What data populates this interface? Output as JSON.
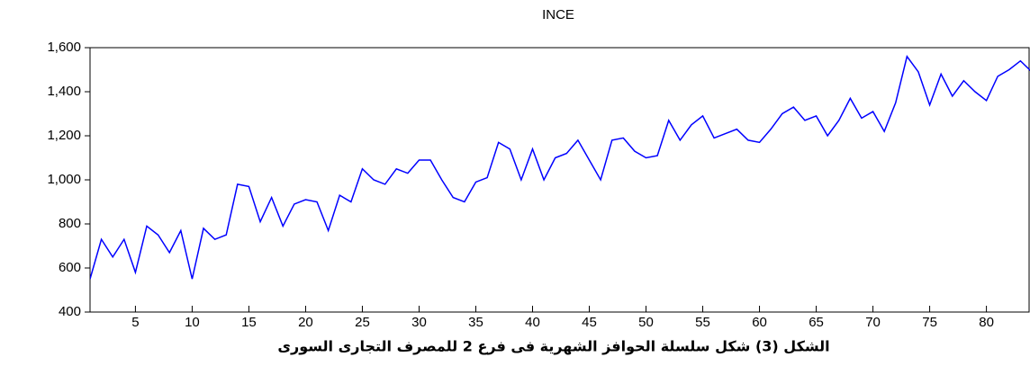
{
  "chart_data": {
    "type": "line",
    "title": "INCE",
    "caption": "الشكل (3) شكل سلسلة الحوافز الشهرية فى فرع 2 للمصرف التجارى السورى",
    "x": [
      1,
      2,
      3,
      4,
      5,
      6,
      7,
      8,
      9,
      10,
      11,
      12,
      13,
      14,
      15,
      16,
      17,
      18,
      19,
      20,
      21,
      22,
      23,
      24,
      25,
      26,
      27,
      28,
      29,
      30,
      31,
      32,
      33,
      34,
      35,
      36,
      37,
      38,
      39,
      40,
      41,
      42,
      43,
      44,
      45,
      46,
      47,
      48,
      49,
      50,
      51,
      52,
      53,
      54,
      55,
      56,
      57,
      58,
      59,
      60,
      61,
      62,
      63,
      64,
      65,
      66,
      67,
      68,
      69,
      70,
      71,
      72,
      73,
      74,
      75,
      76,
      77,
      78,
      79,
      80,
      81,
      82,
      83,
      84
    ],
    "series": [
      {
        "name": "INCE",
        "color": "#0000ff",
        "values": [
          550,
          730,
          650,
          730,
          580,
          790,
          750,
          670,
          770,
          550,
          780,
          730,
          750,
          980,
          970,
          810,
          920,
          790,
          890,
          910,
          900,
          770,
          930,
          900,
          1050,
          1000,
          980,
          1050,
          1030,
          1090,
          1090,
          1000,
          920,
          900,
          990,
          1010,
          1170,
          1140,
          1000,
          1140,
          1000,
          1100,
          1120,
          1180,
          1090,
          1000,
          1180,
          1190,
          1130,
          1100,
          1110,
          1270,
          1180,
          1250,
          1290,
          1190,
          1210,
          1230,
          1180,
          1170,
          1230,
          1300,
          1330,
          1270,
          1290,
          1200,
          1270,
          1370,
          1280,
          1310,
          1220,
          1350,
          1560,
          1490,
          1340,
          1480,
          1380,
          1450,
          1400,
          1360,
          1470,
          1500,
          1540,
          1490
        ]
      }
    ],
    "xlim": [
      1,
      84
    ],
    "xticks": [
      5,
      10,
      15,
      20,
      25,
      30,
      35,
      40,
      45,
      50,
      55,
      60,
      65,
      70,
      75,
      80
    ],
    "ylim": [
      400,
      1600
    ],
    "yticks": [
      400,
      600,
      800,
      {
        "value": 1000,
        "label": "1,000"
      },
      {
        "value": 1200,
        "label": "1,200"
      },
      {
        "value": 1400,
        "label": "1,400"
      },
      {
        "value": 1600,
        "label": "1,600"
      }
    ]
  }
}
